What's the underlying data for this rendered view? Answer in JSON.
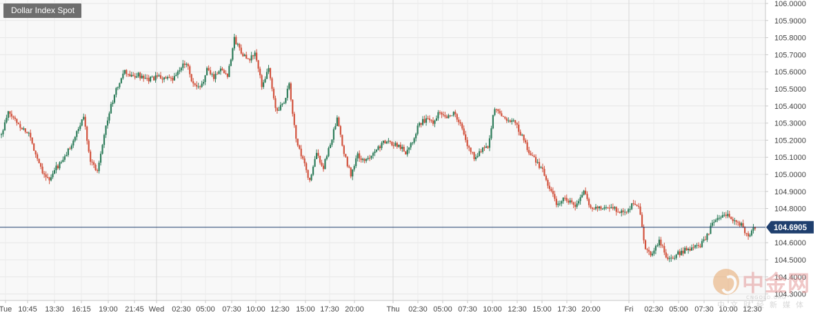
{
  "chart_data": {
    "type": "candlestick",
    "title": "Dollar Index Spot",
    "current_price": 104.6905,
    "ylim": [
      104.3,
      106.0
    ],
    "y_ticks": [
      "106.0000",
      "105.9000",
      "105.8000",
      "105.7000",
      "105.6000",
      "105.5000",
      "105.4000",
      "105.3000",
      "105.2000",
      "105.1000",
      "105.0000",
      "104.9000",
      "104.8000",
      "104.6000",
      "104.5000",
      "104.4000",
      "104.3000"
    ],
    "x_ticks": [
      "Tue",
      "10:45",
      "13:30",
      "16:15",
      "19:00",
      "21:45",
      "Wed",
      "02:30",
      "05:00",
      "07:30",
      "10:00",
      "12:30",
      "15:00",
      "17:30",
      "20:00",
      "Thu",
      "02:30",
      "05:00",
      "07:30",
      "10:00",
      "12:30",
      "15:00",
      "17:30",
      "20:00",
      "Fri",
      "02:30",
      "05:00",
      "07:30",
      "10:00",
      "12:30"
    ],
    "day_separators": [
      "Wed",
      "Thu",
      "Fri"
    ],
    "grid": true,
    "up_color": "#2e7d5b",
    "down_color": "#d2523d",
    "price_line_color": "#1f3f6e",
    "anchors": [
      [
        0,
        105.23
      ],
      [
        4,
        105.36
      ],
      [
        8,
        105.32
      ],
      [
        12,
        105.27
      ],
      [
        16,
        105.24
      ],
      [
        20,
        105.12
      ],
      [
        24,
        105.02
      ],
      [
        28,
        104.96
      ],
      [
        32,
        105.04
      ],
      [
        36,
        105.08
      ],
      [
        40,
        105.16
      ],
      [
        44,
        105.24
      ],
      [
        48,
        105.34
      ],
      [
        52,
        105.08
      ],
      [
        56,
        105.02
      ],
      [
        60,
        105.24
      ],
      [
        64,
        105.4
      ],
      [
        68,
        105.52
      ],
      [
        72,
        105.6
      ],
      [
        76,
        105.57
      ],
      [
        80,
        105.58
      ],
      [
        84,
        105.55
      ],
      [
        88,
        105.56
      ],
      [
        92,
        105.57
      ],
      [
        96,
        105.56
      ],
      [
        100,
        105.55
      ],
      [
        104,
        105.61
      ],
      [
        108,
        105.66
      ],
      [
        112,
        105.52
      ],
      [
        116,
        105.5
      ],
      [
        120,
        105.61
      ],
      [
        124,
        105.57
      ],
      [
        128,
        105.62
      ],
      [
        132,
        105.58
      ],
      [
        136,
        105.79
      ],
      [
        140,
        105.72
      ],
      [
        144,
        105.66
      ],
      [
        148,
        105.71
      ],
      [
        152,
        105.52
      ],
      [
        156,
        105.62
      ],
      [
        160,
        105.38
      ],
      [
        164,
        105.4
      ],
      [
        168,
        105.52
      ],
      [
        172,
        105.2
      ],
      [
        176,
        105.08
      ],
      [
        180,
        104.96
      ],
      [
        184,
        105.12
      ],
      [
        188,
        105.04
      ],
      [
        192,
        105.18
      ],
      [
        196,
        105.32
      ],
      [
        200,
        105.12
      ],
      [
        204,
        105.0
      ],
      [
        208,
        105.11
      ],
      [
        212,
        105.07
      ],
      [
        216,
        105.12
      ],
      [
        220,
        105.16
      ],
      [
        224,
        105.19
      ],
      [
        228,
        105.18
      ],
      [
        232,
        105.17
      ],
      [
        236,
        105.13
      ],
      [
        240,
        105.2
      ],
      [
        244,
        105.3
      ],
      [
        248,
        105.32
      ],
      [
        252,
        105.31
      ],
      [
        256,
        105.37
      ],
      [
        260,
        105.34
      ],
      [
        264,
        105.36
      ],
      [
        268,
        105.29
      ],
      [
        272,
        105.17
      ],
      [
        276,
        105.1
      ],
      [
        280,
        105.14
      ],
      [
        284,
        105.17
      ],
      [
        288,
        105.39
      ],
      [
        292,
        105.34
      ],
      [
        296,
        105.32
      ],
      [
        300,
        105.3
      ],
      [
        304,
        105.22
      ],
      [
        308,
        105.13
      ],
      [
        312,
        105.08
      ],
      [
        316,
        105.02
      ],
      [
        320,
        104.92
      ],
      [
        324,
        104.82
      ],
      [
        328,
        104.86
      ],
      [
        332,
        104.84
      ],
      [
        336,
        104.82
      ],
      [
        340,
        104.9
      ],
      [
        344,
        104.8
      ],
      [
        348,
        104.81
      ],
      [
        352,
        104.8
      ],
      [
        356,
        104.81
      ],
      [
        360,
        104.79
      ],
      [
        364,
        104.78
      ],
      [
        368,
        104.82
      ],
      [
        372,
        104.82
      ],
      [
        376,
        104.56
      ],
      [
        380,
        104.53
      ],
      [
        384,
        104.62
      ],
      [
        388,
        104.52
      ],
      [
        392,
        104.52
      ],
      [
        396,
        104.54
      ],
      [
        400,
        104.56
      ],
      [
        404,
        104.57
      ],
      [
        408,
        104.58
      ],
      [
        412,
        104.64
      ],
      [
        416,
        104.73
      ],
      [
        420,
        104.74
      ],
      [
        424,
        104.78
      ],
      [
        428,
        104.72
      ],
      [
        432,
        104.7
      ],
      [
        436,
        104.63
      ],
      [
        440,
        104.69
      ]
    ]
  }
}
